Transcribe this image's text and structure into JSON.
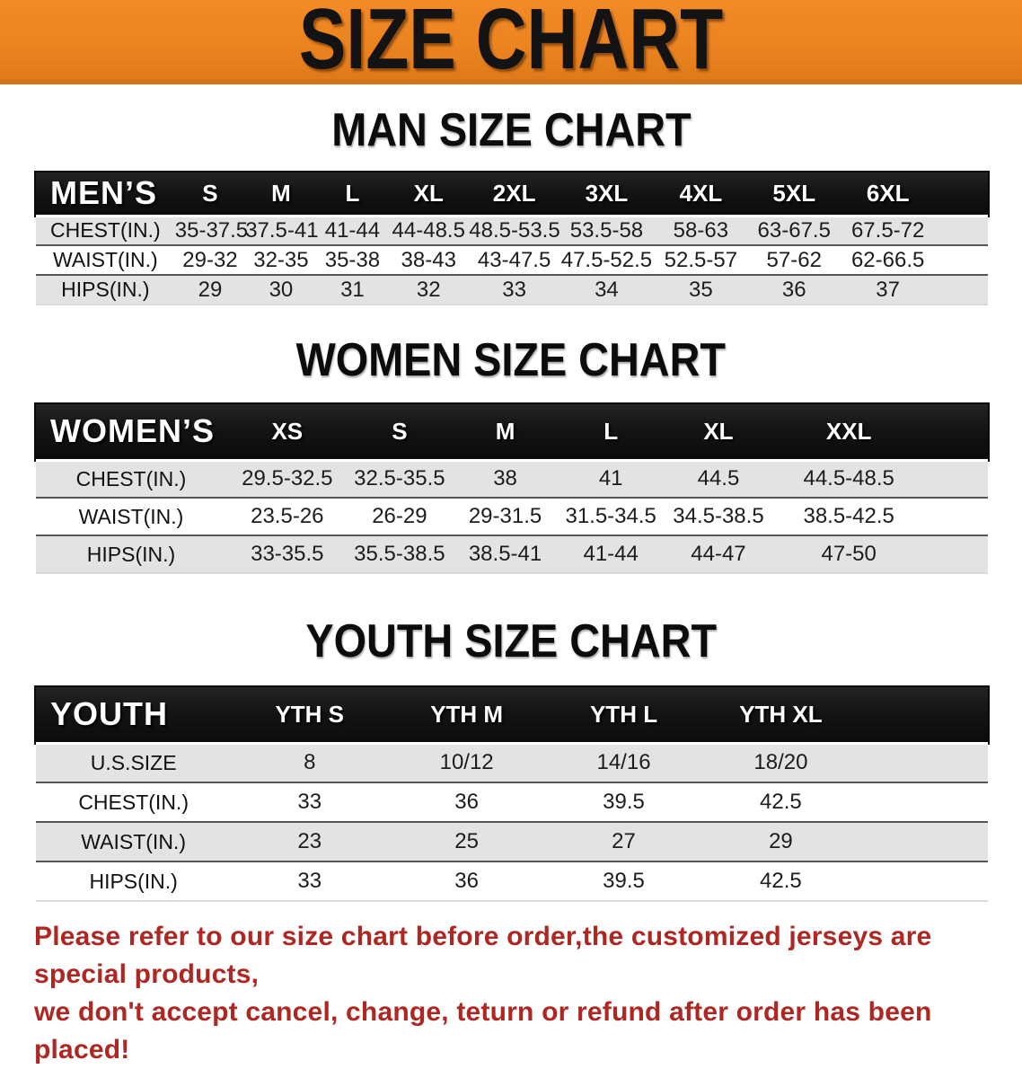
{
  "banner": {
    "title": "SIZE CHART"
  },
  "sections": [
    {
      "title": "MAN SIZE CHART",
      "group_label": "MEN’S",
      "columns": [
        "S",
        "M",
        "L",
        "XL",
        "2XL",
        "3XL",
        "4XL",
        "5XL",
        "6XL"
      ],
      "rows": [
        {
          "label": "CHEST(IN.)",
          "values": [
            "35-37.5",
            "37.5-41",
            "41-44",
            "44-48.5",
            "48.5-53.5",
            "53.5-58",
            "58-63",
            "63-67.5",
            "67.5-72"
          ]
        },
        {
          "label": "WAIST(IN.)",
          "values": [
            "29-32",
            "32-35",
            "35-38",
            "38-43",
            "43-47.5",
            "47.5-52.5",
            "52.5-57",
            "57-62",
            "62-66.5"
          ]
        },
        {
          "label": "HIPS(IN.)",
          "values": [
            "29",
            "30",
            "31",
            "32",
            "33",
            "34",
            "35",
            "36",
            "37"
          ]
        }
      ]
    },
    {
      "title": "WOMEN SIZE CHART",
      "group_label": "WOMEN’S",
      "columns": [
        "XS",
        "S",
        "M",
        "L",
        "XL",
        "XXL"
      ],
      "rows": [
        {
          "label": "CHEST(IN.)",
          "values": [
            "29.5-32.5",
            "32.5-35.5",
            "38",
            "41",
            "44.5",
            "44.5-48.5"
          ]
        },
        {
          "label": "WAIST(IN.)",
          "values": [
            "23.5-26",
            "26-29",
            "29-31.5",
            "31.5-34.5",
            "34.5-38.5",
            "38.5-42.5"
          ]
        },
        {
          "label": "HIPS(IN.)",
          "values": [
            "33-35.5",
            "35.5-38.5",
            "38.5-41",
            "41-44",
            "44-47",
            "47-50"
          ]
        }
      ]
    },
    {
      "title": "YOUTH SIZE CHART",
      "group_label": "YOUTH",
      "columns": [
        "YTH S",
        "YTH M",
        "YTH L",
        "YTH XL"
      ],
      "rows": [
        {
          "label": "U.S.SIZE",
          "values": [
            "8",
            "10/12",
            "14/16",
            "18/20"
          ]
        },
        {
          "label": "CHEST(IN.)",
          "values": [
            "33",
            "36",
            "39.5",
            "42.5"
          ]
        },
        {
          "label": "WAIST(IN.)",
          "values": [
            "23",
            "25",
            "27",
            "29"
          ]
        },
        {
          "label": "HIPS(IN.)",
          "values": [
            "33",
            "36",
            "39.5",
            "42.5"
          ]
        }
      ]
    }
  ],
  "disclaimer": {
    "line1": "Please refer to our size chart before order,the customized jerseys are special products,",
    "line2": "we don't accept cancel, change, teturn or refund after order has been placed!"
  },
  "colors": {
    "banner_orange": "#EC8420",
    "header_black": "#141414",
    "row_gray": "#E3E3E3",
    "separator": "#565656",
    "disclaimer_red": "#AE2722"
  }
}
